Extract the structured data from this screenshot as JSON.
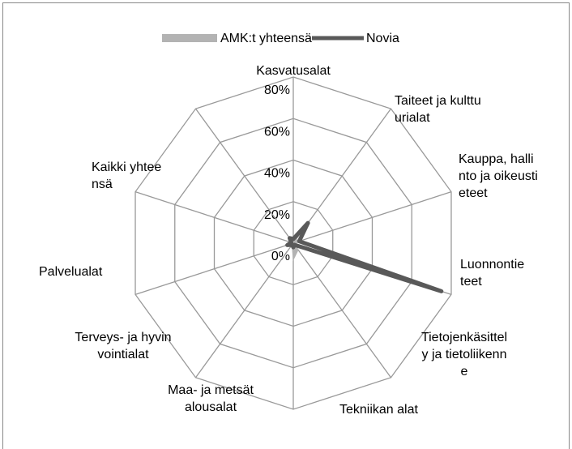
{
  "chart_data": {
    "type": "radar",
    "categories": [
      "Kasvatusalat",
      "Taiteet ja kulttuurialat",
      "Kauppa, hallinto ja oikeustieteet",
      "Luonnontieteet",
      "Tietojenkäsittely ja tietoliikenne",
      "Tekniikan alat",
      "Maa- ja metsätalousalat",
      "Terveys- ja hyvinvointialat",
      "Palvelualat",
      "Kaikki yhteensä"
    ],
    "series": [
      {
        "name": "AMK:t yhteensä",
        "color": "#b3b3b3",
        "values": [
          3,
          2,
          5,
          1,
          4,
          8,
          1,
          5,
          2,
          4
        ]
      },
      {
        "name": "Novia",
        "color": "#595959",
        "values": [
          2,
          12,
          3,
          75,
          1,
          2,
          1,
          3,
          1,
          3
        ]
      }
    ],
    "ylim": [
      0,
      80
    ],
    "yticks": [
      {
        "value": 0,
        "label": "0%"
      },
      {
        "value": 20,
        "label": "20%"
      },
      {
        "value": 40,
        "label": "40%"
      },
      {
        "value": 60,
        "label": "60%"
      },
      {
        "value": 80,
        "label": "80%"
      }
    ],
    "grid": true,
    "legend": "top"
  }
}
